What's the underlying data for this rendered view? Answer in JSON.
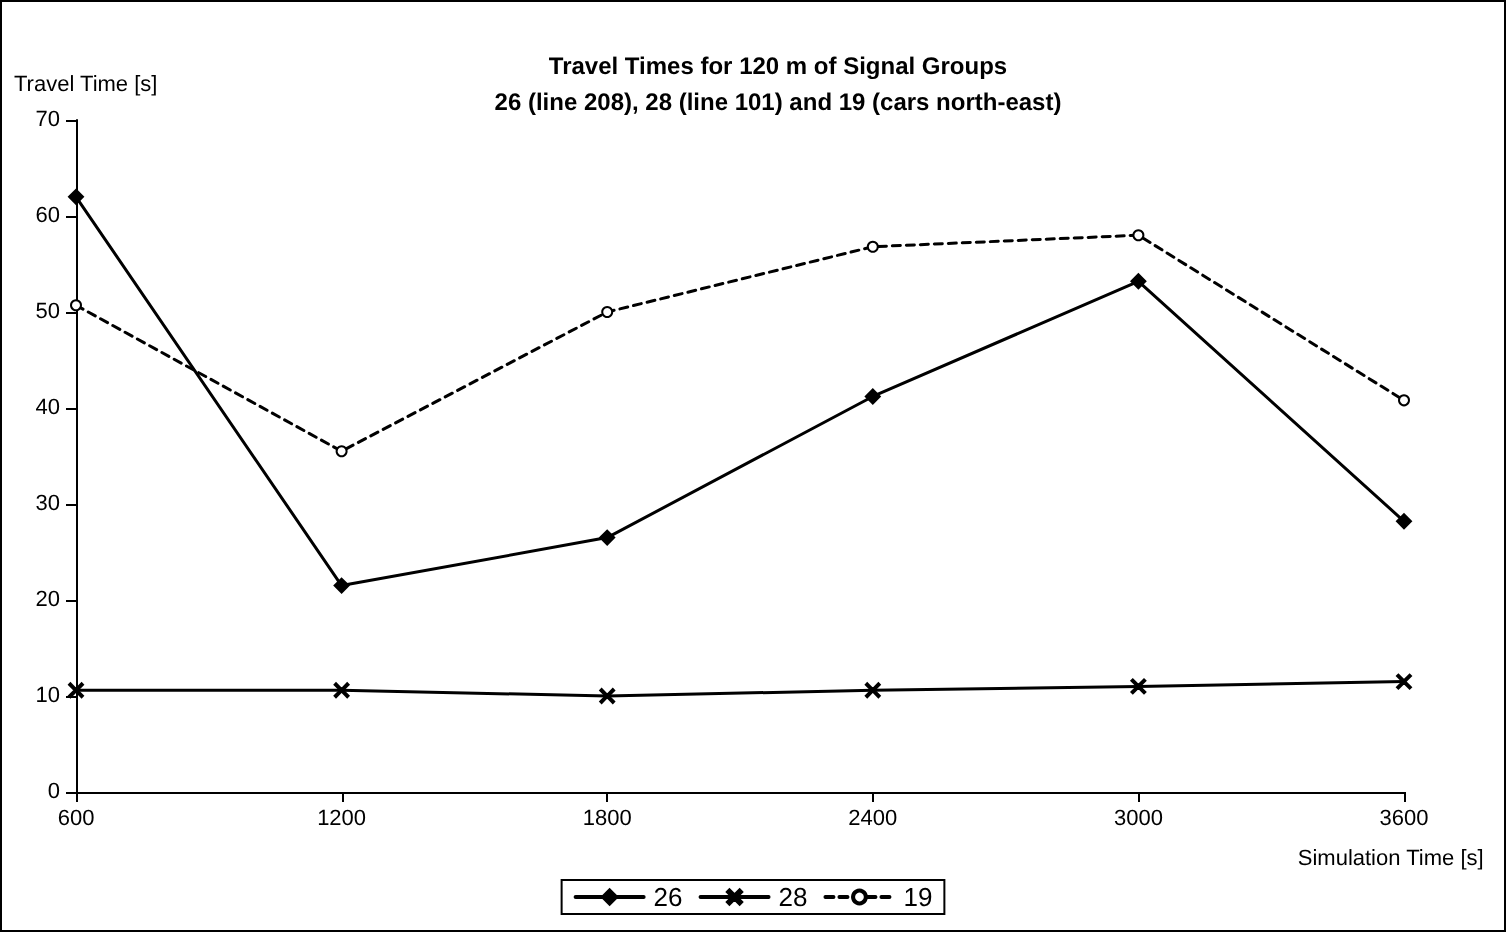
{
  "chart_data": {
    "type": "line",
    "title": "Travel Times for 120 m of Signal Groups\n26 (line 208), 28 (line 101) and 19 (cars north-east)",
    "xlabel": "Simulation Time [s]",
    "ylabel": "Travel Time [s]",
    "x": [
      600,
      1200,
      1800,
      2400,
      3000,
      3600
    ],
    "series": [
      {
        "name": "26",
        "color": "#000000",
        "marker": "diamond",
        "line_style": "solid",
        "values": [
          62,
          21.5,
          26.5,
          41.2,
          53.2,
          28.2
        ]
      },
      {
        "name": "28",
        "color": "#000000",
        "marker": "cross",
        "line_style": "solid",
        "values": [
          10.6,
          10.6,
          10,
          10.6,
          11,
          11.5
        ]
      },
      {
        "name": "19",
        "color": "#000000",
        "marker": "circle",
        "line_style": "dashed",
        "values": [
          50.7,
          35.5,
          50,
          56.8,
          58,
          40.8
        ]
      }
    ],
    "xlim": [
      600,
      3600
    ],
    "xticks": [
      600,
      1200,
      1800,
      2400,
      3000,
      3600
    ],
    "ylim": [
      0,
      70
    ],
    "yticks": [
      0,
      10,
      20,
      30,
      40,
      50,
      60,
      70
    ],
    "grid": false,
    "legend": "bottom"
  }
}
